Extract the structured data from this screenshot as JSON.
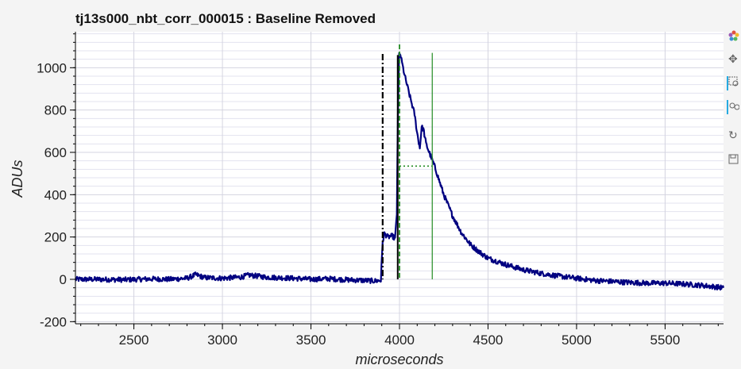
{
  "chart_data": {
    "type": "line",
    "title": "tj13s000_nbt_corr_000015 : Baseline Removed",
    "xlabel": "microseconds",
    "ylabel": "ADUs",
    "xlim": [
      2170,
      5830
    ],
    "ylim": [
      -210,
      1170
    ],
    "x_ticks": [
      2500,
      3000,
      3500,
      4000,
      4500,
      5000,
      5500
    ],
    "y_ticks": [
      -200,
      0,
      200,
      400,
      600,
      800,
      1000
    ],
    "grid": true,
    "legend": "none",
    "series": [
      {
        "color": "#000080",
        "x": [
          2170,
          2300,
          2450,
          2600,
          2700,
          2800,
          2850,
          2900,
          3000,
          3100,
          3150,
          3250,
          3400,
          3500,
          3600,
          3700,
          3800,
          3860,
          3895,
          3905,
          3915,
          3935,
          3960,
          3975,
          3985,
          3992,
          3998,
          4005,
          4030,
          4060,
          4085,
          4100,
          4115,
          4125,
          4135,
          4150,
          4200,
          4250,
          4300,
          4350,
          4400,
          4450,
          4500,
          4600,
          4700,
          4800,
          4900,
          5000,
          5100,
          5200,
          5300,
          5400,
          5500,
          5600,
          5700,
          5830
        ],
        "y": [
          0,
          0,
          -2,
          2,
          0,
          5,
          22,
          8,
          5,
          10,
          20,
          10,
          5,
          0,
          3,
          -2,
          -5,
          -8,
          -5,
          180,
          215,
          200,
          205,
          190,
          310,
          850,
          1070,
          1060,
          960,
          860,
          780,
          690,
          620,
          720,
          710,
          640,
          530,
          400,
          300,
          220,
          165,
          130,
          100,
          70,
          45,
          28,
          15,
          5,
          -5,
          -10,
          -15,
          -18,
          -18,
          -22,
          -28,
          -40
        ]
      }
    ],
    "markers": {
      "dashdot_x": 3905,
      "solid_x": [
        3990,
        4185
      ],
      "dashed_x": 4000,
      "dotted_y": 535,
      "dotted_x_range": [
        4000,
        4185
      ],
      "peak_top": 1070
    },
    "colors": {
      "line": "#000080",
      "marker_green": "#228b22",
      "marker_black": "#000000"
    }
  },
  "toolbar": {
    "items": [
      {
        "icon": "bokeh-logo-icon",
        "active": false
      },
      {
        "icon": "pan-icon",
        "active": false
      },
      {
        "icon": "box-zoom-icon",
        "active": true
      },
      {
        "icon": "wheel-zoom-icon",
        "active": true
      },
      {
        "icon": "reset-icon",
        "active": false
      },
      {
        "icon": "save-icon",
        "active": false
      }
    ]
  }
}
